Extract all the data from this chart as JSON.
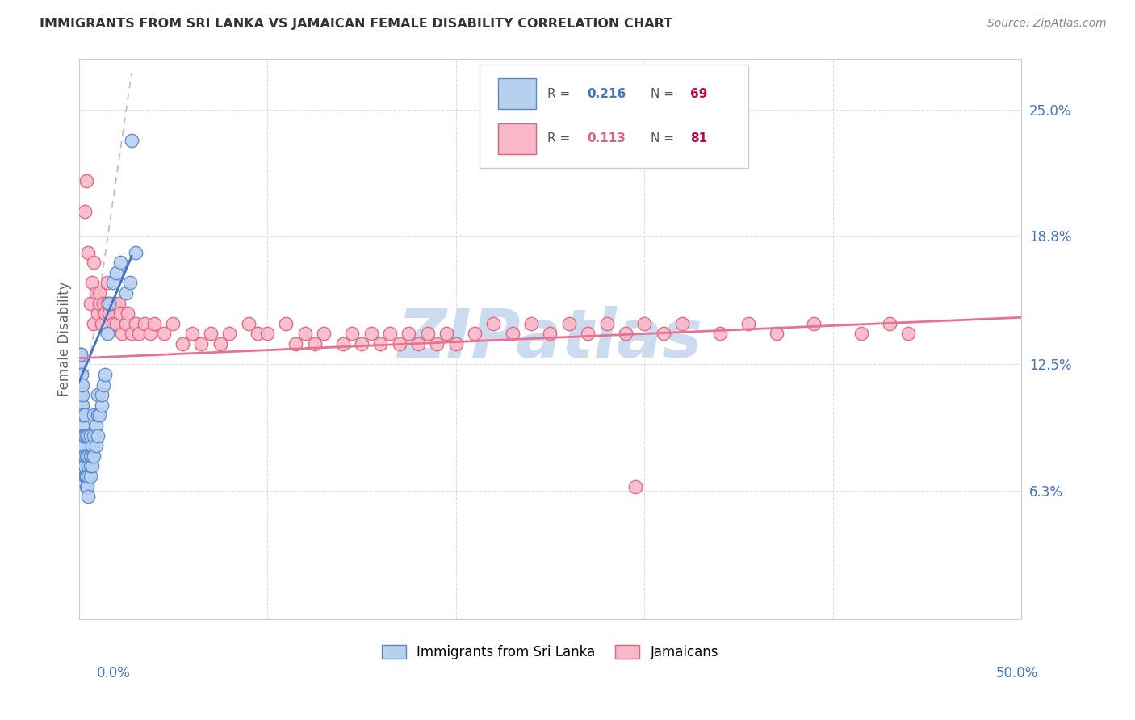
{
  "title": "IMMIGRANTS FROM SRI LANKA VS JAMAICAN FEMALE DISABILITY CORRELATION CHART",
  "source": "Source: ZipAtlas.com",
  "ylabel": "Female Disability",
  "right_yticks": [
    "25.0%",
    "18.8%",
    "12.5%",
    "6.3%"
  ],
  "right_ytick_vals": [
    0.25,
    0.188,
    0.125,
    0.063
  ],
  "xmin": 0.0,
  "xmax": 0.5,
  "ymin": 0.0,
  "ymax": 0.275,
  "legend_r1_label": "R = ",
  "legend_r1_val": "0.216",
  "legend_n1_label": "N = ",
  "legend_n1_val": "69",
  "legend_r2_label": "R = ",
  "legend_r2_val": "0.113",
  "legend_n2_label": "N = ",
  "legend_n2_val": "81",
  "blue_fill": "#b8d0f0",
  "blue_edge": "#5588cc",
  "pink_fill": "#f8b8c8",
  "pink_edge": "#e06080",
  "blue_line_color": "#4472c4",
  "pink_line_color": "#e87090",
  "gray_dash_color": "#bbbbbb",
  "watermark": "ZIPatlas",
  "watermark_color": "#ccdcf0",
  "legend_val_color_blue": "#4472c4",
  "legend_val_color_pink": "#e06080",
  "legend_n_color": "#cc0044",
  "text_color": "#333333",
  "source_color": "#888888",
  "axis_label_color": "#4472c4",
  "grid_color": "#dddddd",
  "blue_trend_x": [
    0.0,
    0.028
  ],
  "blue_trend_y": [
    0.116,
    0.178
  ],
  "pink_trend_x": [
    0.0,
    0.5
  ],
  "pink_trend_y": [
    0.128,
    0.148
  ],
  "ref_line_x": [
    0.0,
    0.028
  ],
  "ref_line_y": [
    0.09,
    0.268
  ],
  "blue_x": [
    0.0008,
    0.0009,
    0.001,
    0.001,
    0.001,
    0.0012,
    0.0012,
    0.0013,
    0.0014,
    0.0015,
    0.0015,
    0.0016,
    0.0017,
    0.0018,
    0.002,
    0.002,
    0.002,
    0.002,
    0.002,
    0.0022,
    0.0023,
    0.0025,
    0.0025,
    0.003,
    0.003,
    0.003,
    0.003,
    0.003,
    0.0032,
    0.0035,
    0.004,
    0.004,
    0.004,
    0.004,
    0.0045,
    0.005,
    0.005,
    0.005,
    0.005,
    0.005,
    0.006,
    0.006,
    0.006,
    0.006,
    0.007,
    0.007,
    0.007,
    0.008,
    0.008,
    0.008,
    0.009,
    0.009,
    0.01,
    0.01,
    0.01,
    0.011,
    0.012,
    0.012,
    0.013,
    0.014,
    0.015,
    0.016,
    0.018,
    0.02,
    0.022,
    0.025,
    0.027,
    0.028,
    0.03
  ],
  "blue_y": [
    0.125,
    0.13,
    0.11,
    0.12,
    0.13,
    0.1,
    0.115,
    0.105,
    0.12,
    0.1,
    0.115,
    0.1,
    0.095,
    0.105,
    0.085,
    0.09,
    0.1,
    0.11,
    0.115,
    0.09,
    0.085,
    0.08,
    0.09,
    0.07,
    0.075,
    0.08,
    0.09,
    0.1,
    0.075,
    0.07,
    0.065,
    0.07,
    0.08,
    0.09,
    0.065,
    0.06,
    0.07,
    0.075,
    0.08,
    0.09,
    0.07,
    0.075,
    0.08,
    0.09,
    0.075,
    0.08,
    0.085,
    0.08,
    0.09,
    0.1,
    0.085,
    0.095,
    0.09,
    0.1,
    0.11,
    0.1,
    0.105,
    0.11,
    0.115,
    0.12,
    0.14,
    0.155,
    0.165,
    0.17,
    0.175,
    0.16,
    0.165,
    0.235,
    0.18
  ],
  "pink_x": [
    0.003,
    0.004,
    0.005,
    0.006,
    0.007,
    0.008,
    0.008,
    0.009,
    0.01,
    0.011,
    0.011,
    0.012,
    0.013,
    0.014,
    0.015,
    0.015,
    0.016,
    0.017,
    0.018,
    0.019,
    0.02,
    0.021,
    0.022,
    0.023,
    0.025,
    0.026,
    0.028,
    0.03,
    0.032,
    0.035,
    0.038,
    0.04,
    0.045,
    0.05,
    0.055,
    0.06,
    0.065,
    0.07,
    0.075,
    0.08,
    0.09,
    0.095,
    0.1,
    0.11,
    0.115,
    0.12,
    0.125,
    0.13,
    0.14,
    0.145,
    0.15,
    0.155,
    0.16,
    0.165,
    0.17,
    0.175,
    0.18,
    0.185,
    0.19,
    0.195,
    0.2,
    0.21,
    0.22,
    0.23,
    0.24,
    0.25,
    0.26,
    0.27,
    0.28,
    0.29,
    0.3,
    0.31,
    0.32,
    0.34,
    0.355,
    0.37,
    0.39,
    0.415,
    0.43,
    0.44,
    0.295
  ],
  "pink_y": [
    0.2,
    0.215,
    0.18,
    0.155,
    0.165,
    0.145,
    0.175,
    0.16,
    0.15,
    0.155,
    0.16,
    0.145,
    0.155,
    0.15,
    0.155,
    0.165,
    0.15,
    0.155,
    0.145,
    0.155,
    0.145,
    0.155,
    0.15,
    0.14,
    0.145,
    0.15,
    0.14,
    0.145,
    0.14,
    0.145,
    0.14,
    0.145,
    0.14,
    0.145,
    0.135,
    0.14,
    0.135,
    0.14,
    0.135,
    0.14,
    0.145,
    0.14,
    0.14,
    0.145,
    0.135,
    0.14,
    0.135,
    0.14,
    0.135,
    0.14,
    0.135,
    0.14,
    0.135,
    0.14,
    0.135,
    0.14,
    0.135,
    0.14,
    0.135,
    0.14,
    0.135,
    0.14,
    0.145,
    0.14,
    0.145,
    0.14,
    0.145,
    0.14,
    0.145,
    0.14,
    0.145,
    0.14,
    0.145,
    0.14,
    0.145,
    0.14,
    0.145,
    0.14,
    0.145,
    0.14,
    0.065
  ]
}
